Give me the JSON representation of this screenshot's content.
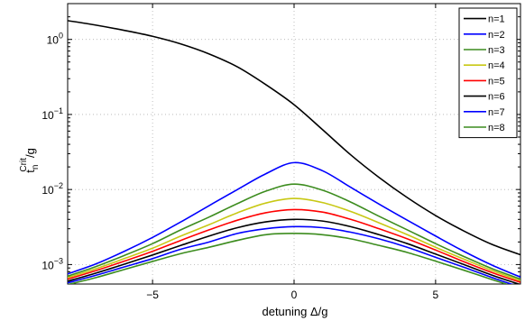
{
  "chart_data": {
    "type": "line",
    "title": "",
    "xlabel": "detuning Δ/g",
    "ylabel": {
      "base": "t",
      "sub": "n",
      "sup": "Crit",
      "suffix": "/g"
    },
    "xlim": [
      -8,
      8
    ],
    "ylim": [
      0.00055,
      3.0
    ],
    "yscale": "log",
    "grid": true,
    "legend_position": "top-right",
    "x_ticks": [
      {
        "value": -5,
        "label": "−5"
      },
      {
        "value": 0,
        "label": "0"
      },
      {
        "value": 5,
        "label": "5"
      }
    ],
    "y_ticks": [
      {
        "value": 0.001,
        "base": "10",
        "exp": "−3"
      },
      {
        "value": 0.01,
        "base": "10",
        "exp": "−2"
      },
      {
        "value": 0.1,
        "base": "10",
        "exp": "−1"
      },
      {
        "value": 1,
        "base": "10",
        "exp": "0"
      }
    ],
    "x": [
      -8,
      -7,
      -6,
      -5,
      -4,
      -3,
      -2,
      -1,
      0,
      1,
      2,
      3,
      4,
      5,
      6,
      7,
      8
    ],
    "series": [
      {
        "name": "n=1",
        "color": "#000000",
        "values": [
          1.78,
          1.55,
          1.32,
          1.1,
          0.87,
          0.64,
          0.43,
          0.25,
          0.135,
          0.063,
          0.029,
          0.0145,
          0.0078,
          0.0045,
          0.0028,
          0.00185,
          0.00135
        ]
      },
      {
        "name": "n=2",
        "color": "#0000ff",
        "values": [
          0.00075,
          0.00102,
          0.0015,
          0.0023,
          0.0037,
          0.0061,
          0.01,
          0.0162,
          0.0228,
          0.0178,
          0.0107,
          0.0064,
          0.0039,
          0.0024,
          0.0015,
          0.00098,
          0.00068
        ]
      },
      {
        "name": "n=3",
        "color": "#3c8c1e",
        "values": [
          0.0007,
          0.00094,
          0.00132,
          0.0019,
          0.0029,
          0.0043,
          0.0065,
          0.0095,
          0.0118,
          0.0098,
          0.0068,
          0.0044,
          0.0029,
          0.0019,
          0.00128,
          0.00088,
          0.00064
        ]
      },
      {
        "name": "n=4",
        "color": "#c8c814",
        "values": [
          0.00067,
          0.00088,
          0.0012,
          0.00165,
          0.0024,
          0.0034,
          0.0049,
          0.0066,
          0.0076,
          0.0067,
          0.0051,
          0.0036,
          0.0025,
          0.0017,
          0.00118,
          0.00083,
          0.00061
        ]
      },
      {
        "name": "n=5",
        "color": "#ff0000",
        "values": [
          0.00064,
          0.00083,
          0.00111,
          0.0015,
          0.0021,
          0.0029,
          0.0039,
          0.0049,
          0.0054,
          0.005,
          0.004,
          0.003,
          0.0022,
          0.00156,
          0.00109,
          0.00078,
          0.00058
        ]
      },
      {
        "name": "n=6",
        "color": "#000000",
        "values": [
          0.0006,
          0.00077,
          0.00101,
          0.00134,
          0.0018,
          0.0024,
          0.0031,
          0.0037,
          0.004,
          0.0038,
          0.0032,
          0.0025,
          0.0019,
          0.00138,
          0.001,
          0.00072,
          0.00054
        ]
      },
      {
        "name": "n=7",
        "color": "#0000ff",
        "values": [
          0.00057,
          0.00072,
          0.00093,
          0.0012,
          0.0016,
          0.002,
          0.0026,
          0.003,
          0.0032,
          0.0031,
          0.0027,
          0.0022,
          0.0017,
          0.00125,
          0.00092,
          0.00067,
          0.0005
        ]
      },
      {
        "name": "n=8",
        "color": "#3c8c1e",
        "values": [
          0.00054,
          0.00067,
          0.00086,
          0.0011,
          0.0014,
          0.0017,
          0.0021,
          0.0025,
          0.0026,
          0.0025,
          0.0022,
          0.0018,
          0.00145,
          0.00111,
          0.00084,
          0.00063,
          0.00048
        ]
      }
    ]
  }
}
